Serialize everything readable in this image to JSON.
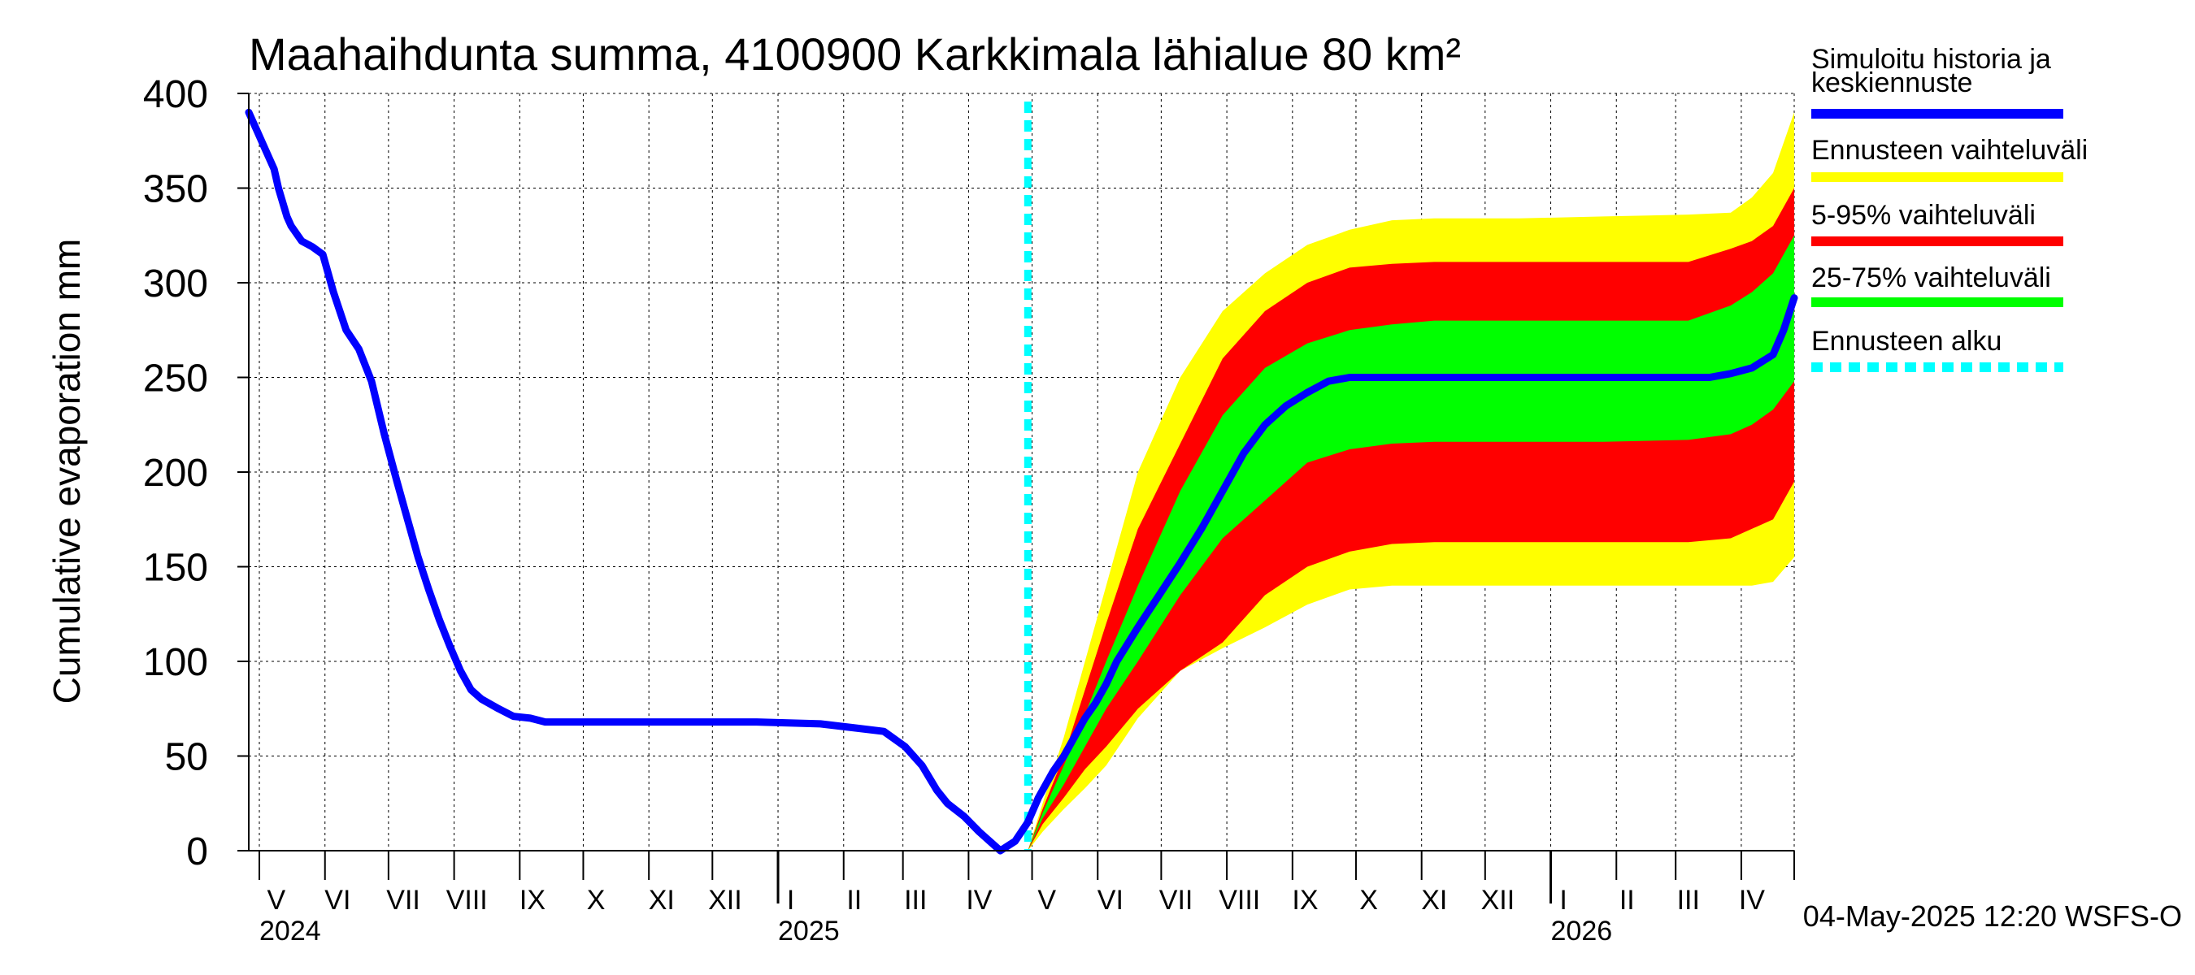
{
  "chart_data": {
    "type": "area",
    "title": "Maahaihdunta summa, 4100900 Karkkimala lähialue 80 km²",
    "ylabel": "Cumulative evaporation   mm",
    "xlabel": "",
    "ylim": [
      0,
      400
    ],
    "yticks": [
      0,
      50,
      100,
      150,
      200,
      250,
      300,
      350,
      400
    ],
    "xlim_days": [
      0,
      730
    ],
    "x_unit": "days since 2024-04-26",
    "forecast_start_day": 368,
    "month_labels": [
      {
        "label": "V",
        "day": 13
      },
      {
        "label": "VI",
        "day": 42
      },
      {
        "label": "VII",
        "day": 73
      },
      {
        "label": "VIII",
        "day": 103
      },
      {
        "label": "IX",
        "day": 134
      },
      {
        "label": "X",
        "day": 164
      },
      {
        "label": "XI",
        "day": 195
      },
      {
        "label": "XII",
        "day": 225
      },
      {
        "label": "I",
        "day": 256
      },
      {
        "label": "II",
        "day": 286
      },
      {
        "label": "III",
        "day": 315
      },
      {
        "label": "IV",
        "day": 345
      },
      {
        "label": "V",
        "day": 377
      },
      {
        "label": "VI",
        "day": 407
      },
      {
        "label": "VII",
        "day": 438
      },
      {
        "label": "VIII",
        "day": 468
      },
      {
        "label": "IX",
        "day": 499
      },
      {
        "label": "X",
        "day": 529
      },
      {
        "label": "XI",
        "day": 560
      },
      {
        "label": "XII",
        "day": 590
      },
      {
        "label": "I",
        "day": 621
      },
      {
        "label": "II",
        "day": 651
      },
      {
        "label": "III",
        "day": 680
      },
      {
        "label": "IV",
        "day": 710
      }
    ],
    "month_boundaries": [
      5,
      36,
      66,
      97,
      128,
      158,
      189,
      219,
      250,
      281,
      309,
      340,
      370,
      401,
      431,
      462,
      493,
      523,
      554,
      584,
      615,
      646,
      674,
      705
    ],
    "year_boundaries": [
      250,
      615
    ],
    "year_labels": [
      {
        "label": "2024",
        "day": 5
      },
      {
        "label": "2025",
        "day": 250
      },
      {
        "label": "2026",
        "day": 615
      }
    ],
    "series": [
      {
        "name": "Simuloitu historia ja keskiennuste",
        "color": "#0000ff",
        "x": [
          0,
          4,
          8,
          12,
          14,
          18,
          20,
          25,
          30,
          35,
          40,
          46,
          52,
          58,
          64,
          70,
          75,
          80,
          85,
          90,
          95,
          100,
          105,
          110,
          118,
          125,
          133,
          140,
          150,
          160,
          180,
          210,
          240,
          270,
          285,
          300,
          310,
          318,
          325,
          330,
          338,
          345,
          355,
          362,
          368,
          373,
          380,
          385,
          390,
          395,
          400,
          405,
          410,
          420,
          430,
          440,
          450,
          460,
          470,
          480,
          490,
          500,
          510,
          520,
          530,
          540,
          550,
          570,
          600,
          640,
          670,
          690,
          700,
          710,
          720,
          725,
          730
        ],
        "y": [
          390,
          380,
          370,
          360,
          350,
          335,
          330,
          322,
          319,
          315,
          295,
          275,
          265,
          248,
          220,
          195,
          175,
          155,
          138,
          122,
          108,
          95,
          85,
          80,
          75,
          71,
          70,
          68,
          68,
          68,
          68,
          68,
          68,
          67,
          65,
          63,
          55,
          45,
          32,
          25,
          18,
          10,
          0,
          5,
          15,
          28,
          42,
          50,
          60,
          70,
          78,
          88,
          100,
          118,
          135,
          152,
          170,
          190,
          210,
          225,
          235,
          242,
          248,
          250,
          250,
          250,
          250,
          250,
          250,
          250,
          250,
          250,
          252,
          255,
          262,
          275,
          292
        ]
      },
      {
        "name": "Ennusteen vaihteluväli",
        "color": "#ffff00",
        "x": [
          368,
          375,
          385,
          395,
          405,
          420,
          440,
          460,
          480,
          500,
          520,
          540,
          560,
          600,
          640,
          680,
          700,
          710,
          720,
          730
        ],
        "upper": [
          0,
          25,
          60,
          100,
          140,
          200,
          250,
          285,
          305,
          320,
          328,
          333,
          334,
          334,
          335,
          336,
          337,
          345,
          358,
          390
        ],
        "lower": [
          0,
          10,
          22,
          33,
          45,
          70,
          95,
          107,
          118,
          130,
          138,
          140,
          140,
          140,
          140,
          140,
          140,
          140,
          142,
          155
        ]
      },
      {
        "name": "5-95% vaihteluväli",
        "color": "#ff0000",
        "x": [
          368,
          375,
          385,
          395,
          405,
          420,
          440,
          460,
          480,
          500,
          520,
          540,
          560,
          600,
          640,
          680,
          700,
          710,
          720,
          730
        ],
        "upper": [
          0,
          22,
          50,
          85,
          120,
          170,
          215,
          260,
          285,
          300,
          308,
          310,
          311,
          311,
          311,
          311,
          318,
          322,
          330,
          350
        ],
        "lower": [
          0,
          14,
          28,
          43,
          55,
          75,
          95,
          110,
          135,
          150,
          158,
          162,
          163,
          163,
          163,
          163,
          165,
          170,
          175,
          195
        ]
      },
      {
        "name": "25-75% vaihteluväli",
        "color": "#00ff00",
        "x": [
          368,
          375,
          385,
          395,
          405,
          420,
          440,
          460,
          480,
          500,
          520,
          540,
          560,
          600,
          640,
          680,
          700,
          710,
          720,
          730
        ],
        "upper": [
          0,
          20,
          45,
          72,
          100,
          140,
          190,
          230,
          255,
          268,
          275,
          278,
          280,
          280,
          280,
          280,
          288,
          295,
          305,
          325
        ],
        "lower": [
          0,
          17,
          35,
          55,
          75,
          100,
          135,
          165,
          185,
          205,
          212,
          215,
          216,
          216,
          216,
          217,
          220,
          225,
          233,
          248
        ]
      },
      {
        "name": "Ennusteen alku",
        "color": "#00ffff",
        "x": [
          368,
          368
        ],
        "y": [
          0,
          400
        ]
      }
    ],
    "legend": [
      {
        "label": "Simuloitu historia ja keskiennuste",
        "lines": [
          "Simuloitu historia ja",
          "keskiennuste"
        ],
        "color": "#0000ff",
        "style": "solid"
      },
      {
        "label": "Ennusteen vaihteluväli",
        "lines": [
          "Ennusteen vaihteluväli"
        ],
        "color": "#ffff00",
        "style": "solid"
      },
      {
        "label": "5-95% vaihteluväli",
        "lines": [
          "5-95% vaihteluväli"
        ],
        "color": "#ff0000",
        "style": "solid"
      },
      {
        "label": "25-75% vaihteluväli",
        "lines": [
          "25-75% vaihteluväli"
        ],
        "color": "#00ff00",
        "style": "solid"
      },
      {
        "label": "Ennusteen alku",
        "lines": [
          "Ennusteen alku"
        ],
        "color": "#00ffff",
        "style": "dashed"
      }
    ],
    "legend_position": "right",
    "footer": "04-May-2025 12:20 WSFS-O",
    "grid": true
  }
}
